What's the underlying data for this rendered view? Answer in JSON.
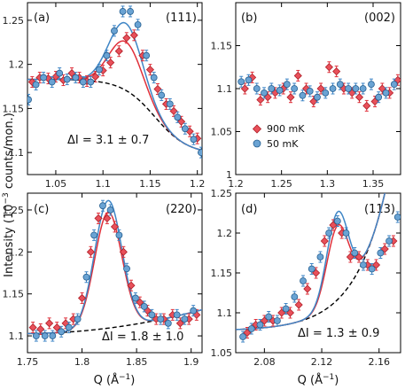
{
  "colors": {
    "red": "#e0303a",
    "blue": "#3f86c6",
    "red_fill": "#e8505a",
    "blue_fill": "#6aa3d3"
  },
  "figure": {
    "ylabel_prefix": "Intensity (10",
    "ylabel_sup": "−3",
    "ylabel_suffix": " counts/mon.)",
    "xlabel_prefix": "Q (Å",
    "xlabel_sup": "−1",
    "xlabel_suffix": ")"
  },
  "legend": {
    "red_label": "900 mK",
    "blue_label": "50 mK",
    "red_marker": "diamond",
    "blue_marker": "circle"
  },
  "chart_data": [
    {
      "panel": "(a)",
      "reflection": "(111)",
      "type": "scatter",
      "xlim": [
        1.02,
        1.205
      ],
      "ylim": [
        1.075,
        1.27
      ],
      "xticks": [
        1.05,
        1.1,
        1.15,
        1.2
      ],
      "xtick_labels": [
        "1.05",
        "1.1",
        "1.15",
        "1.2"
      ],
      "yticks": [
        1.1,
        1.15,
        1.2,
        1.25
      ],
      "ytick_labels": [
        "1.1",
        "1.15",
        "1.2",
        "1.25"
      ],
      "annotation": "ΔI = 3.1 ± 0.7",
      "fit": {
        "type": "gaussian_on_sloped_background",
        "background": "tanh",
        "bg_high": 1.183,
        "bg_low": 1.098,
        "bg_center": 1.155,
        "bg_width": 0.035,
        "center": 1.124,
        "sigma": 0.0175,
        "amp_red": 0.055,
        "amp_blue": 0.076
      },
      "series": [
        {
          "name": "900 mK",
          "x": [
            1.025,
            1.033,
            1.042,
            1.05,
            1.058,
            1.067,
            1.075,
            1.083,
            1.092,
            1.1,
            1.108,
            1.117,
            1.125,
            1.133,
            1.142,
            1.15,
            1.158,
            1.167,
            1.175,
            1.183,
            1.192,
            1.2
          ],
          "y": [
            1.18,
            1.185,
            1.184,
            1.186,
            1.182,
            1.19,
            1.185,
            1.181,
            1.186,
            1.193,
            1.202,
            1.215,
            1.23,
            1.233,
            1.21,
            1.194,
            1.172,
            1.155,
            1.147,
            1.135,
            1.124,
            1.116
          ]
        },
        {
          "name": "50 mK",
          "x": [
            1.021,
            1.029,
            1.037,
            1.046,
            1.054,
            1.062,
            1.071,
            1.079,
            1.087,
            1.096,
            1.104,
            1.112,
            1.121,
            1.129,
            1.137,
            1.146,
            1.154,
            1.162,
            1.171,
            1.179,
            1.187,
            1.196,
            1.204
          ],
          "y": [
            1.16,
            1.177,
            1.185,
            1.18,
            1.19,
            1.183,
            1.185,
            1.18,
            1.18,
            1.194,
            1.21,
            1.238,
            1.26,
            1.26,
            1.245,
            1.21,
            1.185,
            1.165,
            1.155,
            1.14,
            1.127,
            1.115,
            1.1
          ]
        }
      ]
    },
    {
      "panel": "(b)",
      "reflection": "(002)",
      "type": "scatter",
      "xlim": [
        1.2,
        1.38
      ],
      "ylim": [
        1.0,
        1.2
      ],
      "xticks": [
        1.2,
        1.25,
        1.3,
        1.35
      ],
      "xtick_labels": [
        "1.2",
        "1.25",
        "1.3",
        "1.35"
      ],
      "yticks": [
        1.0,
        1.05,
        1.1,
        1.15
      ],
      "ytick_labels": [
        "1",
        "1.05",
        "1.1",
        "1.15"
      ],
      "annotation": "",
      "series": [
        {
          "name": "900 mK",
          "x": [
            1.21,
            1.218,
            1.227,
            1.235,
            1.243,
            1.252,
            1.26,
            1.268,
            1.277,
            1.285,
            1.293,
            1.302,
            1.31,
            1.318,
            1.327,
            1.335,
            1.343,
            1.352,
            1.36,
            1.368,
            1.377
          ],
          "y": [
            1.1,
            1.113,
            1.087,
            1.09,
            1.095,
            1.1,
            1.09,
            1.115,
            1.1,
            1.085,
            1.1,
            1.125,
            1.12,
            1.1,
            1.095,
            1.09,
            1.08,
            1.085,
            1.1,
            1.095,
            1.11
          ]
        },
        {
          "name": "50 mK",
          "x": [
            1.206,
            1.214,
            1.223,
            1.231,
            1.239,
            1.248,
            1.256,
            1.264,
            1.273,
            1.281,
            1.289,
            1.298,
            1.306,
            1.314,
            1.323,
            1.331,
            1.339,
            1.348,
            1.356,
            1.364,
            1.373
          ],
          "y": [
            1.108,
            1.11,
            1.1,
            1.095,
            1.1,
            1.098,
            1.105,
            1.1,
            1.092,
            1.097,
            1.09,
            1.095,
            1.1,
            1.105,
            1.1,
            1.1,
            1.1,
            1.105,
            1.09,
            1.095,
            1.105
          ]
        }
      ]
    },
    {
      "panel": "(c)",
      "reflection": "(220)",
      "type": "scatter",
      "xlim": [
        1.75,
        1.91
      ],
      "ylim": [
        1.08,
        1.27
      ],
      "xticks": [
        1.75,
        1.8,
        1.85,
        1.9
      ],
      "xtick_labels": [
        "1.75",
        "1.8",
        "1.85",
        "1.9"
      ],
      "yticks": [
        1.1,
        1.15,
        1.2,
        1.25
      ],
      "ytick_labels": [
        "1.1",
        "1.15",
        "1.2",
        "1.25"
      ],
      "annotation": "ΔI = 1.8 ± 1.0",
      "fit": {
        "type": "gaussian_on_quadratic_background",
        "bg_y0": 1.103,
        "bg_slope": 0.1,
        "bg_curv": 3.5,
        "bg_x0": 1.76,
        "center": 1.824,
        "sigma": 0.0125,
        "amp_red": 0.138,
        "amp_blue": 0.152
      },
      "series": [
        {
          "name": "900 mK",
          "x": [
            1.755,
            1.762,
            1.77,
            1.777,
            1.785,
            1.792,
            1.8,
            1.808,
            1.815,
            1.823,
            1.83,
            1.838,
            1.845,
            1.853,
            1.86,
            1.868,
            1.875,
            1.883,
            1.89,
            1.898,
            1.905
          ],
          "y": [
            1.11,
            1.108,
            1.115,
            1.11,
            1.115,
            1.12,
            1.145,
            1.2,
            1.24,
            1.24,
            1.23,
            1.2,
            1.16,
            1.14,
            1.13,
            1.12,
            1.12,
            1.125,
            1.115,
            1.12,
            1.125
          ]
        },
        {
          "name": "50 mK",
          "x": [
            1.758,
            1.766,
            1.773,
            1.781,
            1.788,
            1.796,
            1.804,
            1.811,
            1.819,
            1.826,
            1.834,
            1.841,
            1.849,
            1.857,
            1.864,
            1.872,
            1.879,
            1.887,
            1.894,
            1.902
          ],
          "y": [
            1.1,
            1.1,
            1.1,
            1.105,
            1.11,
            1.12,
            1.17,
            1.22,
            1.255,
            1.25,
            1.22,
            1.18,
            1.145,
            1.135,
            1.125,
            1.12,
            1.115,
            1.125,
            1.12,
            1.13
          ]
        }
      ]
    },
    {
      "panel": "(d)",
      "reflection": "(113)",
      "type": "scatter",
      "xlim": [
        2.06,
        2.175
      ],
      "ylim": [
        1.05,
        1.25
      ],
      "xticks": [
        2.08,
        2.12,
        2.16
      ],
      "xtick_labels": [
        "2.08",
        "2.12",
        "2.16"
      ],
      "yticks": [
        1.05,
        1.1,
        1.15,
        1.2,
        1.25
      ],
      "ytick_labels": [
        "1.05",
        "1.1",
        "1.15",
        "1.2",
        "1.25"
      ],
      "annotation": "ΔI = 1.3 ± 0.9",
      "fit": {
        "type": "gaussian_on_exp_background",
        "bg_a": 1.079,
        "bg_b": 0.0016,
        "bg_k": 45,
        "bg_x0": 2.06,
        "center": 2.131,
        "sigma": 0.0075,
        "amp_red": 0.093,
        "amp_blue": 0.11
      },
      "series": [
        {
          "name": "900 mK",
          "x": [
            2.068,
            2.074,
            2.08,
            2.086,
            2.092,
            2.098,
            2.104,
            2.11,
            2.116,
            2.122,
            2.128,
            2.134,
            2.14,
            2.146,
            2.152,
            2.158,
            2.164,
            2.17
          ],
          "y": [
            1.075,
            1.085,
            1.09,
            1.09,
            1.1,
            1.1,
            1.11,
            1.13,
            1.15,
            1.19,
            1.21,
            1.2,
            1.17,
            1.17,
            1.16,
            1.16,
            1.18,
            1.19
          ]
        },
        {
          "name": "50 mK",
          "x": [
            2.065,
            2.071,
            2.077,
            2.083,
            2.089,
            2.095,
            2.101,
            2.107,
            2.113,
            2.119,
            2.125,
            2.131,
            2.137,
            2.143,
            2.149,
            2.155,
            2.161,
            2.167,
            2.173
          ],
          "y": [
            1.07,
            1.08,
            1.085,
            1.095,
            1.09,
            1.105,
            1.12,
            1.14,
            1.155,
            1.17,
            1.2,
            1.215,
            1.2,
            1.175,
            1.16,
            1.155,
            1.175,
            1.19,
            1.22
          ]
        }
      ]
    }
  ]
}
